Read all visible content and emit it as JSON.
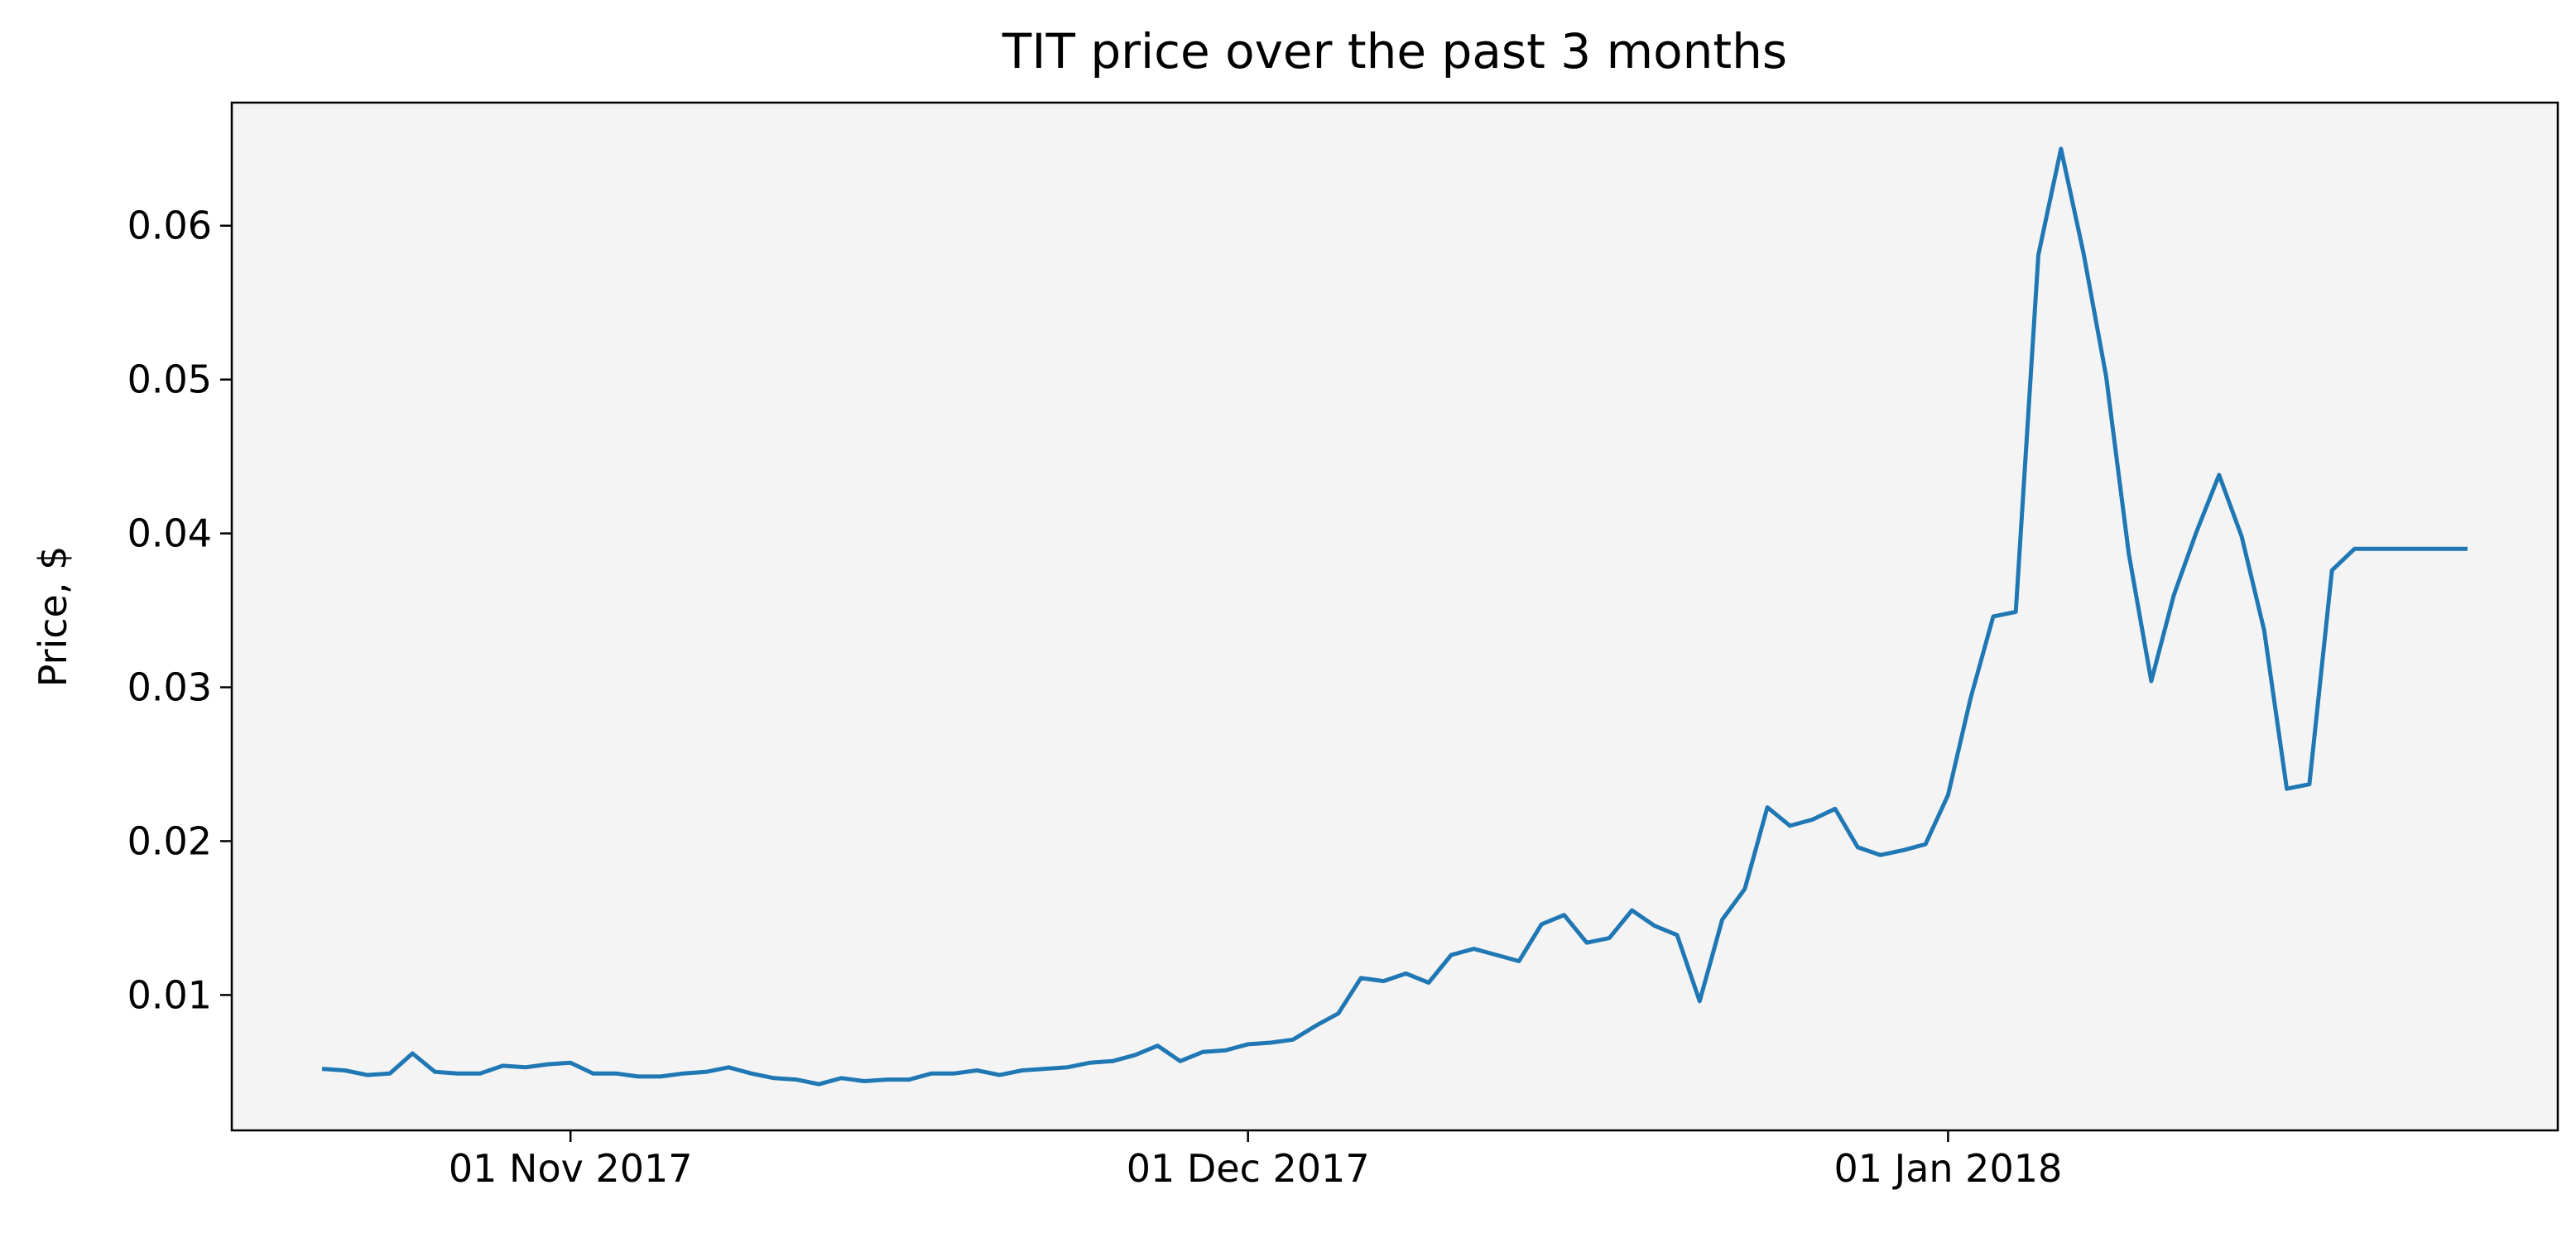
{
  "chart_data": {
    "type": "line",
    "title": "TIT price over the past 3 months",
    "xlabel": "",
    "ylabel": "Price, $",
    "x_type": "date",
    "xlim": [
      "2017-10-17",
      "2018-01-28"
    ],
    "ylim": [
      0.0012,
      0.068
    ],
    "x_ticks": [
      {
        "date": "2017-11-01",
        "label": "01 Nov 2017"
      },
      {
        "date": "2017-12-01",
        "label": "01 Dec 2017"
      },
      {
        "date": "2018-01-01",
        "label": "01 Jan 2018"
      }
    ],
    "y_ticks": [
      {
        "value": 0.01,
        "label": "0.01"
      },
      {
        "value": 0.02,
        "label": "0.02"
      },
      {
        "value": 0.03,
        "label": "0.03"
      },
      {
        "value": 0.04,
        "label": "0.04"
      },
      {
        "value": 0.05,
        "label": "0.05"
      },
      {
        "value": 0.06,
        "label": "0.06"
      }
    ],
    "grid": false,
    "legend": "none",
    "series": [
      {
        "color": "#1f77b4",
        "x": [
          "2017-10-21",
          "2017-10-22",
          "2017-10-23",
          "2017-10-24",
          "2017-10-25",
          "2017-10-26",
          "2017-10-27",
          "2017-10-28",
          "2017-10-29",
          "2017-10-30",
          "2017-10-31",
          "2017-11-01",
          "2017-11-02",
          "2017-11-03",
          "2017-11-04",
          "2017-11-05",
          "2017-11-06",
          "2017-11-07",
          "2017-11-08",
          "2017-11-09",
          "2017-11-10",
          "2017-11-11",
          "2017-11-12",
          "2017-11-13",
          "2017-11-14",
          "2017-11-15",
          "2017-11-16",
          "2017-11-17",
          "2017-11-18",
          "2017-11-19",
          "2017-11-20",
          "2017-11-21",
          "2017-11-22",
          "2017-11-23",
          "2017-11-24",
          "2017-11-25",
          "2017-11-26",
          "2017-11-27",
          "2017-11-28",
          "2017-11-29",
          "2017-11-30",
          "2017-12-01",
          "2017-12-02",
          "2017-12-03",
          "2017-12-04",
          "2017-12-05",
          "2017-12-06",
          "2017-12-07",
          "2017-12-08",
          "2017-12-09",
          "2017-12-10",
          "2017-12-11",
          "2017-12-12",
          "2017-12-13",
          "2017-12-14",
          "2017-12-15",
          "2017-12-16",
          "2017-12-17",
          "2017-12-18",
          "2017-12-19",
          "2017-12-20",
          "2017-12-21",
          "2017-12-22",
          "2017-12-23",
          "2017-12-24",
          "2017-12-25",
          "2017-12-26",
          "2017-12-27",
          "2017-12-28",
          "2017-12-29",
          "2017-12-30",
          "2017-12-31",
          "2018-01-01",
          "2018-01-02",
          "2018-01-03",
          "2018-01-04",
          "2018-01-05",
          "2018-01-06",
          "2018-01-07",
          "2018-01-08",
          "2018-01-09",
          "2018-01-10",
          "2018-01-11",
          "2018-01-12",
          "2018-01-13",
          "2018-01-14",
          "2018-01-15",
          "2018-01-16",
          "2018-01-17",
          "2018-01-18",
          "2018-01-19",
          "2018-01-20",
          "2018-01-21",
          "2018-01-22",
          "2018-01-23",
          "2018-01-24"
        ],
        "y": [
          0.0052,
          0.0051,
          0.0048,
          0.0049,
          0.0062,
          0.005,
          0.0049,
          0.0049,
          0.0054,
          0.0053,
          0.0055,
          0.0056,
          0.0049,
          0.0049,
          0.0047,
          0.0047,
          0.0049,
          0.005,
          0.0053,
          0.0049,
          0.0046,
          0.0045,
          0.0042,
          0.0046,
          0.0044,
          0.0045,
          0.0045,
          0.0049,
          0.0049,
          0.0051,
          0.0048,
          0.0051,
          0.0052,
          0.0053,
          0.0056,
          0.0057,
          0.0061,
          0.0067,
          0.0057,
          0.0063,
          0.0064,
          0.0068,
          0.0069,
          0.0071,
          0.008,
          0.0088,
          0.0111,
          0.0109,
          0.0114,
          0.0108,
          0.0126,
          0.013,
          0.0126,
          0.0122,
          0.0146,
          0.0152,
          0.0134,
          0.0137,
          0.0155,
          0.0145,
          0.0139,
          0.0096,
          0.0149,
          0.0169,
          0.0222,
          0.021,
          0.0214,
          0.0221,
          0.0196,
          0.0191,
          0.0194,
          0.0198,
          0.023,
          0.0293,
          0.0346,
          0.0349,
          0.0581,
          0.065,
          0.0582,
          0.0502,
          0.0387,
          0.0304,
          0.036,
          0.0401,
          0.0438,
          0.0398,
          0.0337,
          0.0234,
          0.0237,
          0.0376,
          0.039,
          0.039,
          0.039,
          0.039,
          0.039,
          0.039
        ]
      }
    ]
  },
  "style": {
    "plot_background": "#f4f4f4",
    "line_color": "#1f77b4",
    "axis_color": "#000000"
  }
}
